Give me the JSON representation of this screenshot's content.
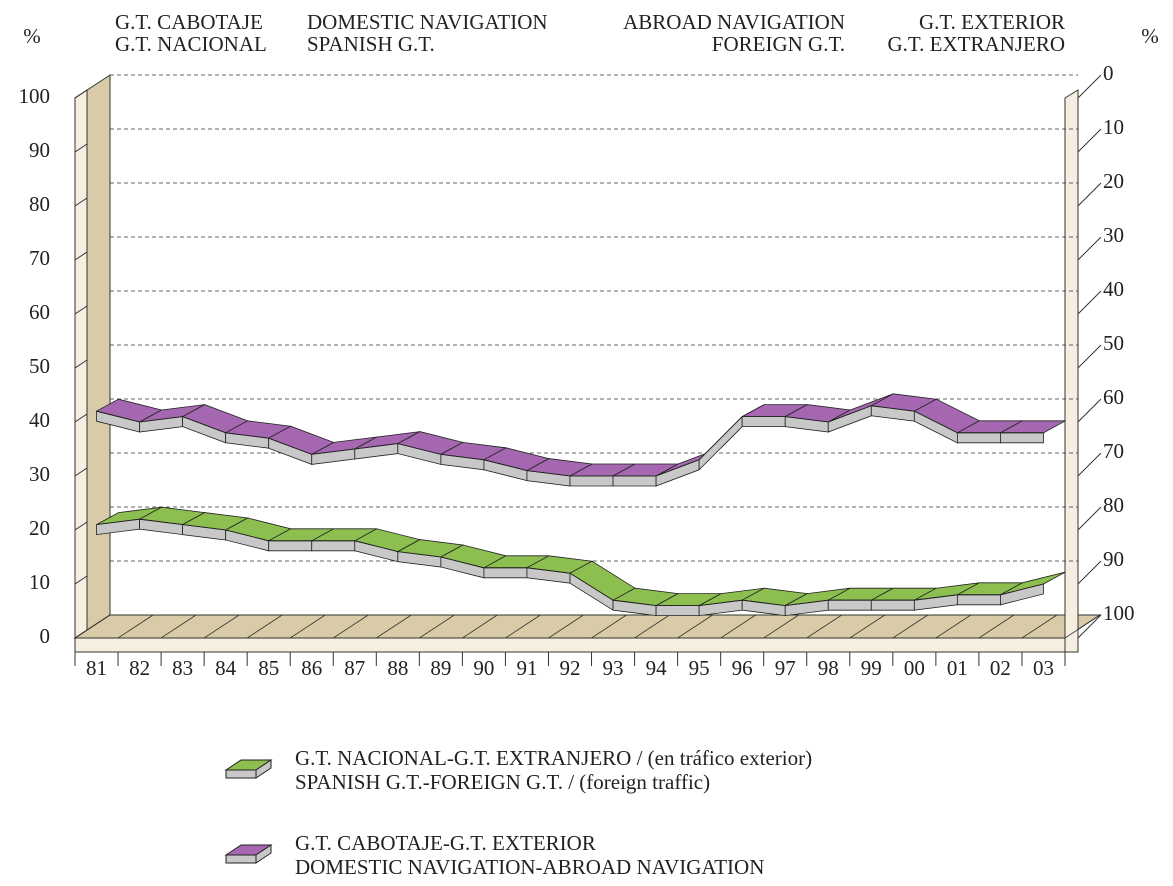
{
  "chart_data": {
    "type": "line",
    "left_unit": "%",
    "right_unit": "%",
    "header": [
      {
        "lines": [
          "G.T. CABOTAJE",
          "G.T. NACIONAL"
        ],
        "align": "start"
      },
      {
        "lines": [
          "DOMESTIC NAVIGATION",
          "SPANISH G.T."
        ],
        "align": "start"
      },
      {
        "lines": [
          "ABROAD NAVIGATION",
          "FOREIGN G.T."
        ],
        "align": "end"
      },
      {
        "lines": [
          "G.T. EXTERIOR",
          "G.T. EXTRANJERO"
        ],
        "align": "end"
      }
    ],
    "categories": [
      "81",
      "82",
      "83",
      "84",
      "85",
      "86",
      "87",
      "88",
      "89",
      "90",
      "91",
      "92",
      "93",
      "94",
      "95",
      "96",
      "97",
      "98",
      "99",
      "00",
      "01",
      "02",
      "03"
    ],
    "series": [
      {
        "name": "G.T. NACIONAL-G.T. EXTRANJERO / (en tráfico exterior)",
        "name_line2": "SPANISH G.T.-FOREIGN G.T. / (foreign traffic)",
        "color": "#8cbf4f",
        "values": [
          21,
          22,
          21,
          20,
          18,
          18,
          18,
          16,
          15,
          13,
          13,
          12,
          7,
          6,
          6,
          7,
          6,
          7,
          7,
          7,
          8,
          8,
          10
        ]
      },
      {
        "name": "G.T. CABOTAJE-G.T. EXTERIOR",
        "name_line2": "DOMESTIC NAVIGATION-ABROAD NAVIGATION",
        "color": "#a567b0",
        "values": [
          42,
          40,
          41,
          38,
          37,
          34,
          35,
          36,
          34,
          33,
          31,
          30,
          30,
          30,
          33,
          41,
          41,
          40,
          43,
          42,
          38,
          38,
          38
        ]
      }
    ],
    "ylim": [
      0,
      100
    ],
    "yticks": [
      0,
      10,
      20,
      30,
      40,
      50,
      60,
      70,
      80,
      90,
      100
    ],
    "y2lim": [
      100,
      0
    ],
    "y2ticks": [
      0,
      10,
      20,
      30,
      40,
      50,
      60,
      70,
      80,
      90,
      100
    ],
    "grid": true
  }
}
